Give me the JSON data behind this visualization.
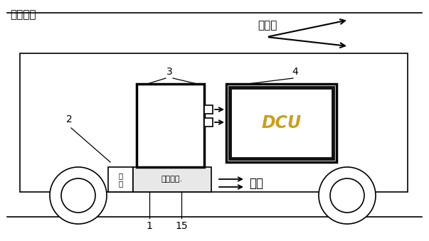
{
  "bg_color": "#ffffff",
  "line_color": "#000000",
  "dcu_text_color": "#c8a020",
  "text_zhiliumumian": "直流母线",
  "text_shoudianhu": "受电弓",
  "text_fengji": "风\n机",
  "text_zhidong": "制动元件.",
  "text_dcu": "DCU",
  "text_reneng": "热能",
  "label_1": "1",
  "label_2": "2",
  "label_3": "3",
  "label_4": "4",
  "label_15": "15",
  "fig_width": 6.03,
  "fig_height": 3.39,
  "dpi": 100
}
